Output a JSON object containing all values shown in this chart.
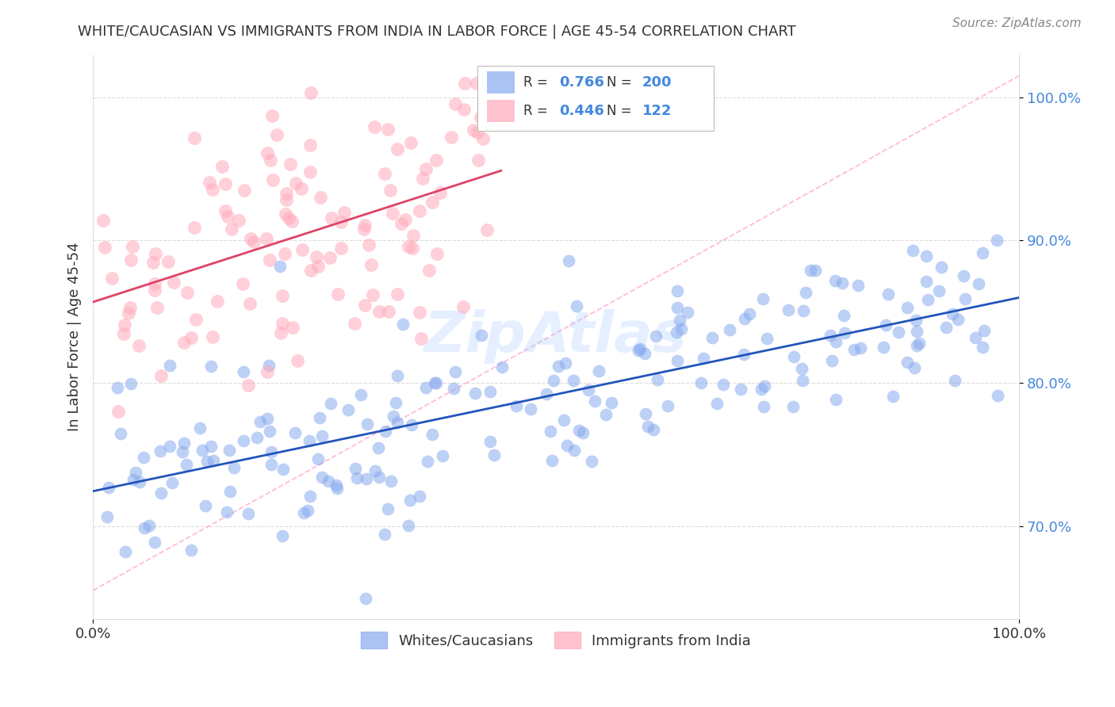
{
  "title": "WHITE/CAUCASIAN VS IMMIGRANTS FROM INDIA IN LABOR FORCE | AGE 45-54 CORRELATION CHART",
  "source": "Source: ZipAtlas.com",
  "ylabel": "In Labor Force | Age 45-54",
  "xlim": [
    0.0,
    1.0
  ],
  "ylim": [
    0.635,
    1.03
  ],
  "y_ticks": [
    0.7,
    0.8,
    0.9,
    1.0
  ],
  "y_tick_labels": [
    "70.0%",
    "80.0%",
    "90.0%",
    "100.0%"
  ],
  "x_tick_labels": [
    "0.0%",
    "100.0%"
  ],
  "blue_R": 0.766,
  "blue_N": 200,
  "pink_R": 0.446,
  "pink_N": 122,
  "blue_color": "#88aaee",
  "pink_color": "#ffaabb",
  "blue_label": "Whites/Caucasians",
  "pink_label": "Immigrants from India",
  "watermark": "ZipAtlas",
  "ref_line_color": "#ffaacc",
  "blue_line_color": "#2255bb",
  "pink_line_color": "#dd4466",
  "grid_color": "#dddddd",
  "tick_color": "#4488dd",
  "title_color": "#333333",
  "source_color": "#888888",
  "seed_blue": 42,
  "seed_pink": 7
}
